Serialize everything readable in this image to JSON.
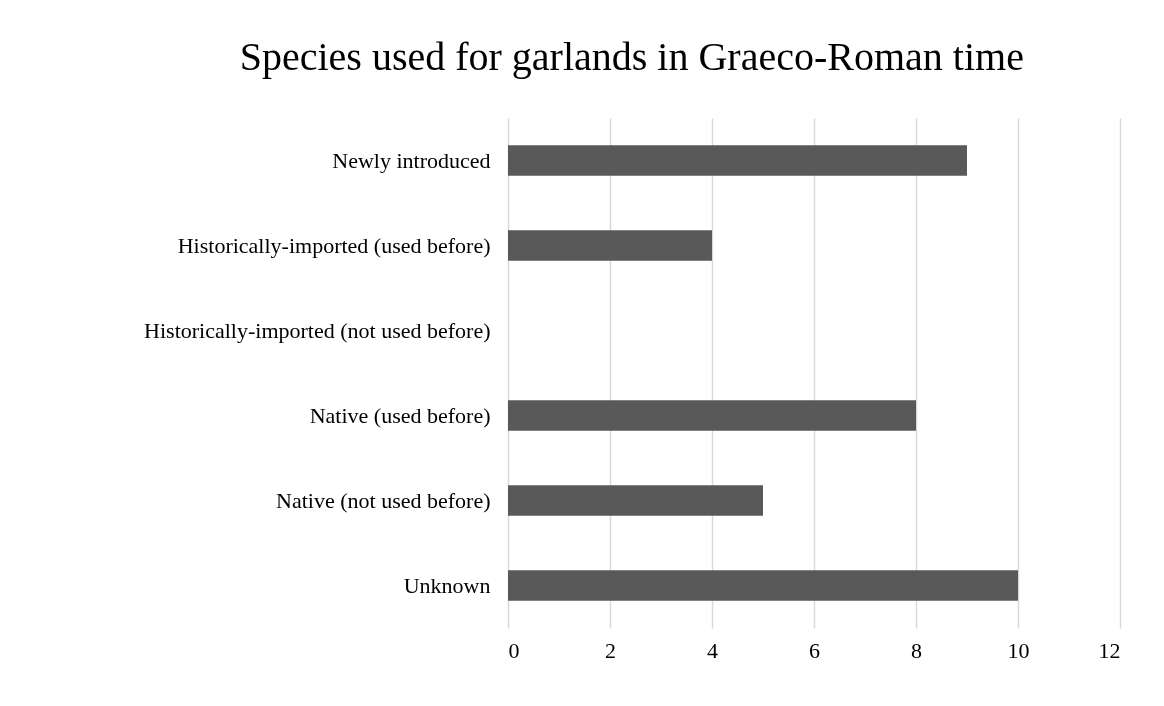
{
  "chart_data": {
    "type": "bar",
    "orientation": "horizontal",
    "title": "Species used for garlands in Graeco-Roman time",
    "categories": [
      "Newly introduced",
      "Historically-imported (used before)",
      "Historically-imported (not used before)",
      "Native (used before)",
      "Native (not used before)",
      "Unknown"
    ],
    "values": [
      9,
      4,
      0,
      8,
      5,
      10
    ],
    "color": "#595959",
    "xlim": [
      0,
      12
    ],
    "xticks": [
      0,
      2,
      4,
      6,
      8,
      10,
      12
    ],
    "grid": "x"
  }
}
